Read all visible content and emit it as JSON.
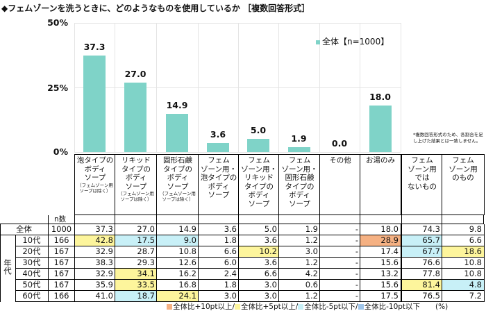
{
  "title": "◆フェムゾーンを洗うときに、どのようなものを使用しているか ［複数回答形式］",
  "legend": "全体【n=1000】",
  "note": "*複数回答形式のため、各割合を足し上げた結果とは一致しません。",
  "colors": {
    "bar": "#7fd3c8",
    "plus10": "#f5b183",
    "plus5": "#fdf59c",
    "minus5": "#c8f0f7",
    "minus10": "#9fc5ea"
  },
  "chart_data": {
    "type": "bar",
    "categories": [
      "泡タイプのボディソープ（フェムゾーン用ソープは除く）",
      "リキッドタイプのボディソープ（フェムゾーン用ソープは除く）",
      "固形石鹸タイプのボディソープ（フェムゾーン用ソープは除く）",
      "フェムゾーン用・泡タイプのボディソープ",
      "フェムゾーン用・リキッドタイプのボディソープ",
      "フェムゾーン用・固形石鹸タイプのボディソープ",
      "その他",
      "お湯のみ"
    ],
    "series": [
      {
        "name": "全体【n=1000】",
        "values": [
          37.3,
          27.0,
          14.9,
          3.6,
          5.0,
          1.9,
          0.0,
          18.0
        ]
      }
    ],
    "value_labels": [
      "37.3",
      "27.0",
      "14.9",
      "3.6",
      "5.0",
      "1.9",
      "0.0",
      "18.0"
    ],
    "yticks": [
      "50%",
      "25%",
      "0%"
    ],
    "ylim": [
      0,
      50
    ],
    "grid": true,
    "legend_position": "top-right"
  },
  "table": {
    "headers": [
      {
        "main": "泡タイプの\nボディ\nソープ",
        "sub": "（フェムゾーン用\nソープは除く）"
      },
      {
        "main": "リキッド\nタイプの\nボディ\nソープ",
        "sub": "（フェムゾーン用\nソープは除く）"
      },
      {
        "main": "固形石鹸\nタイプの\nボディ\nソープ",
        "sub": "（フェムゾーン用\nソープは除く）"
      },
      {
        "main": "フェム\nゾーン用・\n泡タイプの\nボディ\nソープ",
        "sub": ""
      },
      {
        "main": "フェム\nゾーン用・\nリキッド\nタイプの\nボディ\nソープ",
        "sub": ""
      },
      {
        "main": "フェム\nゾーン用・\n固形石鹸\nタイプの\nボディ\nソープ",
        "sub": ""
      },
      {
        "main": "その他",
        "sub": ""
      },
      {
        "main": "お湯のみ",
        "sub": ""
      },
      {
        "main": "フェム\nゾーン用\nでは\nないもの",
        "sub": ""
      },
      {
        "main": "フェム\nゾーン用\nのもの",
        "sub": ""
      }
    ],
    "n_header": "n数",
    "group_label": "年代",
    "rows": [
      {
        "label": "全体",
        "n": "1000",
        "values": [
          "37.3",
          "27.0",
          "14.9",
          "3.6",
          "5.0",
          "1.9",
          "-",
          "18.0",
          "74.3",
          "9.8"
        ],
        "hl": [
          "",
          "",
          "",
          "",
          "",
          "",
          "",
          "",
          "",
          ""
        ]
      },
      {
        "label": "10代",
        "n": "166",
        "values": [
          "42.8",
          "17.5",
          "9.0",
          "1.8",
          "3.6",
          "1.2",
          "-",
          "28.9",
          "65.7",
          "6.6"
        ],
        "hl": [
          "y",
          "c",
          "c",
          "",
          "",
          "",
          "",
          "o",
          "c",
          ""
        ]
      },
      {
        "label": "20代",
        "n": "167",
        "values": [
          "32.9",
          "28.7",
          "10.8",
          "6.6",
          "10.2",
          "3.0",
          "-",
          "17.4",
          "67.7",
          "18.6"
        ],
        "hl": [
          "",
          "",
          "",
          "",
          "y",
          "",
          "",
          "",
          "c",
          "y"
        ]
      },
      {
        "label": "30代",
        "n": "167",
        "values": [
          "38.3",
          "29.3",
          "12.6",
          "6.0",
          "3.6",
          "1.2",
          "-",
          "15.6",
          "76.6",
          "10.8"
        ],
        "hl": [
          "",
          "",
          "",
          "",
          "",
          "",
          "",
          "",
          "",
          ""
        ]
      },
      {
        "label": "40代",
        "n": "167",
        "values": [
          "32.9",
          "34.1",
          "16.2",
          "2.4",
          "6.6",
          "4.2",
          "-",
          "13.2",
          "77.8",
          "10.8"
        ],
        "hl": [
          "",
          "y",
          "",
          "",
          "",
          "",
          "",
          "",
          "",
          ""
        ]
      },
      {
        "label": "50代",
        "n": "167",
        "values": [
          "35.9",
          "33.5",
          "16.8",
          "1.8",
          "3.0",
          "0.6",
          "-",
          "15.6",
          "81.4",
          "4.8"
        ],
        "hl": [
          "",
          "y",
          "",
          "",
          "",
          "",
          "",
          "",
          "y",
          "c"
        ]
      },
      {
        "label": "60代",
        "n": "166",
        "values": [
          "41.0",
          "18.7",
          "24.1",
          "3.0",
          "3.0",
          "1.2",
          "-",
          "17.5",
          "76.5",
          "7.2"
        ],
        "hl": [
          "",
          "c",
          "y",
          "",
          "",
          "",
          "",
          "",
          "",
          ""
        ]
      }
    ]
  },
  "footer": {
    "items": [
      "全体比+10pt以上/",
      "全体比+5pt以上/",
      "全体比-5pt以下/",
      "全体比-10pt以下"
    ],
    "unit": "(%)"
  }
}
